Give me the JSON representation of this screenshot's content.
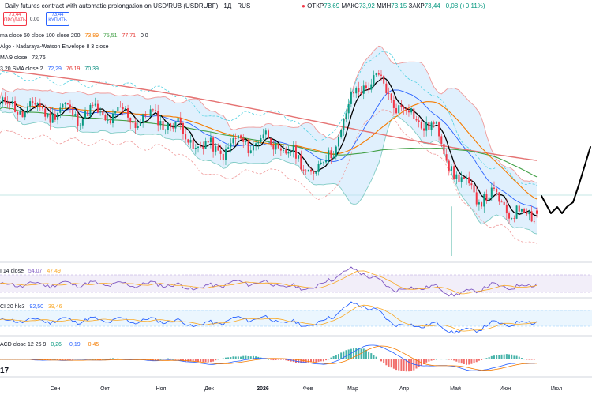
{
  "header": {
    "title": "Daily futures contract with automatic prolongation on USD/RUB (USDRUBF) · 1Д · RUS",
    "ohlc": [
      {
        "label": "ОТКР",
        "value": "73,69"
      },
      {
        "label": "МАКС",
        "value": "73,92"
      },
      {
        "label": "МИН",
        "value": "73,15"
      },
      {
        "label": "ЗАКР",
        "value": "73,44"
      }
    ],
    "change": "+0,08 (+0,11%)",
    "sell": {
      "price": "73,44",
      "label": "ПРОДАТЬ"
    },
    "spread": "0,00",
    "buy": {
      "price": "73,44",
      "label": "КУПИТЬ"
    }
  },
  "indicators": [
    {
      "label": "ma close 50 close 100 close 200",
      "values": [
        "73,89",
        "75,51",
        "77,71"
      ],
      "extra": "0 0"
    },
    {
      "label": "Algo - Nadaraya-Watson Envelope 8 3 close",
      "values": []
    },
    {
      "label": "MA 9 close",
      "values": [
        "72,76"
      ]
    },
    {
      "label": "3 20 SMA close 2",
      "values": [
        "72,29",
        "76,19",
        "70,39"
      ]
    }
  ],
  "panes": {
    "rsi": {
      "label": "I 14 close",
      "values": [
        "54,07",
        "47,49"
      ]
    },
    "cci": {
      "label": "CI 20 hlc3",
      "values": [
        "92,50",
        "39,46"
      ]
    },
    "macd": {
      "label": "ACD close 12 26 9",
      "values": [
        "0,26",
        "−0,19",
        "−0,45"
      ]
    }
  },
  "colors": {
    "up": "#089981",
    "down": "#f23645",
    "ma50": "#f57c00",
    "ma100": "#43a047",
    "ma200": "#e57373",
    "ma9": "#000000",
    "bb": "#2962ff",
    "envelope": "#4dd0e1"
  },
  "x_axis": {
    "months": [
      "Сен",
      "Окт",
      "Ноя",
      "Дек",
      "2026",
      "Фев",
      "Мар",
      "Апр",
      "Май",
      "Июн",
      "Июл"
    ],
    "corner": "17"
  },
  "chart_data": {
    "type": "candlestick",
    "title": "Daily futures contract with automatic prolongation on USD/RUB (USDRUBF) · 1Д · RUS",
    "price_series": [
      {
        "date": "Сен",
        "close": 81.2
      },
      {
        "date": "Окт",
        "close": 80.9
      },
      {
        "date": "Ноя",
        "close": 80.6
      },
      {
        "date": "Дек",
        "close": 78.3
      },
      {
        "date": "2026",
        "close": 79.0
      },
      {
        "date": "Фев",
        "close": 76.8
      },
      {
        "date": "Мар",
        "close": 83.5
      },
      {
        "date": "Апр",
        "close": 80.5
      },
      {
        "date": "Май",
        "close": 75.0
      },
      {
        "date": "Июн",
        "close": 73.4
      }
    ],
    "last": {
      "open": 73.69,
      "high": 73.92,
      "low": 73.15,
      "close": 73.44
    },
    "moving_averages": [
      {
        "name": "MA 50",
        "last": 73.89
      },
      {
        "name": "MA 100",
        "last": 75.51
      },
      {
        "name": "MA 200",
        "last": 77.71
      },
      {
        "name": "MA 9",
        "last": 72.76
      }
    ],
    "bollinger": {
      "basis": 72.29,
      "upper": 76.19,
      "lower": 70.39
    },
    "rsi": {
      "value": 54.07,
      "ma": 47.49
    },
    "cci": {
      "value": 92.5,
      "ma": 39.46
    },
    "macd": {
      "macd": 0.26,
      "signal": -0.19,
      "hist": -0.45
    },
    "forecast_path": [
      [
        0,
        0
      ],
      [
        1,
        4
      ],
      [
        2,
        8
      ],
      [
        3,
        12
      ],
      [
        4,
        9
      ],
      [
        5,
        12
      ],
      [
        6,
        6
      ],
      [
        7,
        0
      ]
    ],
    "grid": true
  }
}
